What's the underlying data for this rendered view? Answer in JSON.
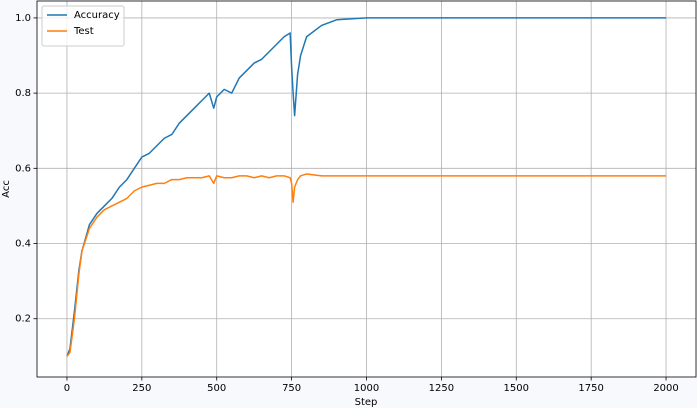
{
  "chart_data": {
    "type": "line",
    "x_label": "Step",
    "y_label": "Acc",
    "x": [
      0,
      10,
      25,
      40,
      50,
      75,
      100,
      125,
      150,
      175,
      200,
      225,
      250,
      275,
      300,
      325,
      350,
      375,
      400,
      425,
      450,
      475,
      490,
      500,
      525,
      550,
      575,
      600,
      625,
      650,
      675,
      700,
      725,
      745,
      750,
      755,
      760,
      770,
      780,
      800,
      850,
      900,
      1000,
      1250,
      1500,
      1750,
      2000
    ],
    "series": [
      {
        "name": "Accuracy",
        "color": "#1f77b4",
        "values": [
          0.1,
          0.12,
          0.22,
          0.33,
          0.38,
          0.45,
          0.48,
          0.5,
          0.52,
          0.55,
          0.57,
          0.6,
          0.63,
          0.64,
          0.66,
          0.68,
          0.69,
          0.72,
          0.74,
          0.76,
          0.78,
          0.8,
          0.76,
          0.79,
          0.81,
          0.8,
          0.84,
          0.86,
          0.88,
          0.89,
          0.91,
          0.93,
          0.95,
          0.96,
          0.87,
          0.8,
          0.74,
          0.85,
          0.9,
          0.95,
          0.98,
          0.995,
          1.0,
          1.0,
          1.0,
          1.0,
          1.0
        ]
      },
      {
        "name": "Test",
        "color": "#ff7f0e",
        "values": [
          0.1,
          0.11,
          0.2,
          0.32,
          0.38,
          0.44,
          0.47,
          0.49,
          0.5,
          0.51,
          0.52,
          0.54,
          0.55,
          0.555,
          0.56,
          0.56,
          0.57,
          0.57,
          0.575,
          0.575,
          0.575,
          0.58,
          0.56,
          0.58,
          0.575,
          0.575,
          0.58,
          0.58,
          0.575,
          0.58,
          0.575,
          0.58,
          0.58,
          0.575,
          0.56,
          0.51,
          0.55,
          0.57,
          0.58,
          0.585,
          0.58,
          0.58,
          0.58,
          0.58,
          0.58,
          0.58,
          0.58
        ]
      }
    ],
    "xlim": [
      -100,
      2100
    ],
    "ylim": [
      0.045,
      1.045
    ],
    "xticks": [
      0,
      250,
      500,
      750,
      1000,
      1250,
      1500,
      1750,
      2000
    ],
    "yticks": [
      0.2,
      0.4,
      0.6,
      0.8,
      {
        "value": 1,
        "label": "1.0"
      }
    ],
    "grid": true,
    "legend": "upper-left"
  }
}
